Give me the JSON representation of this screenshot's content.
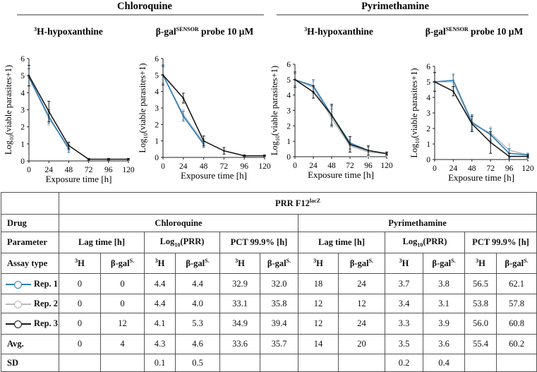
{
  "colors": {
    "rep1": "#2f7fb8",
    "rep2": "#b8b8b8",
    "rep3": "#1a1a1a"
  },
  "groups": [
    "Chloroquine",
    "Pyrimethamine"
  ],
  "chart_data": [
    {
      "type": "line",
      "group": "Chloroquine",
      "title_main": "3H-hypoxanthine",
      "xlabel": "Exposure time [h]",
      "ylabel": "Log10(viable parasites+1)",
      "x": [
        0,
        24,
        48,
        72,
        96,
        120
      ],
      "xticks": [
        "0",
        "24",
        "48",
        "72",
        "96",
        "120"
      ],
      "yticks": [
        "0",
        "1",
        "2",
        "3",
        "4",
        "5",
        "6"
      ],
      "ylim": [
        0,
        6
      ],
      "series": [
        {
          "name": "Rep. 1",
          "x": [
            0,
            24,
            48
          ],
          "values": [
            4.9,
            2.6,
            0.7
          ],
          "err": [
            0.5,
            0.4,
            0.2
          ]
        },
        {
          "name": "Rep. 2",
          "x": [
            0,
            24,
            48
          ],
          "values": [
            4.9,
            2.5,
            0.8
          ],
          "err": [
            0.5,
            0.4,
            0.2
          ]
        },
        {
          "name": "Rep. 3",
          "x": [
            0,
            24,
            48,
            72,
            96,
            120
          ],
          "values": [
            5.0,
            2.9,
            0.9,
            0.1,
            0.1,
            0.1
          ],
          "err": [
            0.6,
            0.6,
            0.2,
            0.05,
            0.05,
            0.05
          ]
        }
      ]
    },
    {
      "type": "line",
      "group": "Chloroquine",
      "title_main": "β-gal",
      "title_sup": "SENSOR",
      "title_tail": " probe  10 μM",
      "xlabel": "Exposure time [h]",
      "ylabel": "Log10(viable parasites+1)",
      "x": [
        0,
        24,
        48,
        72,
        96,
        120
      ],
      "xticks": [
        "0",
        "24",
        "48",
        "72",
        "96",
        "120"
      ],
      "yticks": [
        "0",
        "1",
        "2",
        "3",
        "4",
        "5",
        "6"
      ],
      "ylim": [
        0,
        6
      ],
      "series": [
        {
          "name": "Rep. 1",
          "x": [
            0,
            24,
            48
          ],
          "values": [
            5.0,
            2.5,
            0.8
          ],
          "err": [
            0.5,
            0.3,
            0.2
          ]
        },
        {
          "name": "Rep. 2",
          "x": [
            0,
            24,
            48
          ],
          "values": [
            5.0,
            2.6,
            0.9
          ],
          "err": [
            0.5,
            0.3,
            0.2
          ]
        },
        {
          "name": "Rep. 3",
          "x": [
            0,
            24,
            48,
            72,
            96,
            120
          ],
          "values": [
            5.0,
            3.6,
            1.0,
            0.4,
            0.1,
            0.1
          ],
          "err": [
            0.6,
            0.3,
            0.3,
            0.2,
            0.05,
            0.05
          ]
        }
      ]
    },
    {
      "type": "line",
      "group": "Pyrimethamine",
      "title_main": "3H-hypoxanthine",
      "xlabel": "Exposure time [h]",
      "ylabel": "Log10(viable parasites+1)",
      "x": [
        0,
        24,
        48,
        72,
        96,
        120
      ],
      "xticks": [
        "0",
        "24",
        "48",
        "72",
        "96",
        "120"
      ],
      "yticks": [
        "0",
        "1",
        "2",
        "3",
        "4",
        "5",
        "6"
      ],
      "ylim": [
        0,
        6
      ],
      "series": [
        {
          "name": "Rep. 1",
          "x": [
            0,
            24,
            48,
            72,
            96,
            120
          ],
          "values": [
            5.0,
            4.6,
            2.7,
            0.9,
            0.4,
            0.2
          ],
          "err": [
            0.4,
            0.4,
            0.6,
            0.4,
            0.3,
            0.1
          ]
        },
        {
          "name": "Rep. 2",
          "x": [
            0,
            24,
            48,
            72,
            96,
            120
          ],
          "values": [
            5.0,
            4.5,
            2.5,
            0.7,
            0.3,
            0.2
          ],
          "err": [
            0.4,
            0.4,
            0.6,
            0.4,
            0.3,
            0.1
          ]
        },
        {
          "name": "Rep. 3",
          "x": [
            0,
            24,
            48,
            72,
            96,
            120
          ],
          "values": [
            5.0,
            4.2,
            2.7,
            0.8,
            0.4,
            0.2
          ],
          "err": [
            0.5,
            0.4,
            0.7,
            0.5,
            0.3,
            0.1
          ]
        }
      ]
    },
    {
      "type": "line",
      "group": "Pyrimethamine",
      "title_main": "β-gal",
      "title_sup": "SENSOR",
      "title_tail": " probe  10 μM",
      "xlabel": "Exposure time [h]",
      "ylabel": "Log10(viable parasites+1)",
      "x": [
        0,
        24,
        48,
        72,
        96,
        120
      ],
      "xticks": [
        "0",
        "24",
        "48",
        "72",
        "96",
        "120"
      ],
      "yticks": [
        "0",
        "1",
        "2",
        "3",
        "4",
        "5",
        "6"
      ],
      "ylim": [
        0,
        6
      ],
      "series": [
        {
          "name": "Rep. 1",
          "x": [
            0,
            24,
            48,
            72,
            96,
            120
          ],
          "values": [
            5.0,
            5.1,
            2.4,
            1.6,
            0.4,
            0.3
          ],
          "err": [
            0.6,
            0.4,
            0.5,
            0.4,
            0.3,
            0.1
          ]
        },
        {
          "name": "Rep. 2",
          "x": [
            0,
            24,
            48,
            72,
            96,
            120
          ],
          "values": [
            5.0,
            5.0,
            2.3,
            1.7,
            0.6,
            0.3
          ],
          "err": [
            0.6,
            0.4,
            0.5,
            0.4,
            0.4,
            0.1
          ]
        },
        {
          "name": "Rep. 3",
          "x": [
            0,
            24,
            48,
            72,
            96,
            120
          ],
          "values": [
            5.0,
            4.4,
            2.3,
            1.1,
            0.2,
            0.2
          ],
          "err": [
            0.6,
            0.3,
            0.5,
            0.7,
            0.2,
            0.1
          ]
        }
      ]
    }
  ],
  "table": {
    "title_main": "PRR F12",
    "title_sup": "lacZ",
    "drug_label": "Drug",
    "drugs": [
      "Chloroquine",
      "Pyrimethamine"
    ],
    "parameter_label": "Parameter",
    "lag_label": "Lag time [h]",
    "log_main": "Log",
    "log_sub": "10",
    "log_tail": "(PRR)",
    "pct_label": "PCT 99.9% [h]",
    "assay_label": "Assay type",
    "h_sup": "3",
    "h_main": "H",
    "bg_main": "β-gal",
    "bg_sup": "S.",
    "rows": [
      {
        "label": "Rep. 1",
        "values": [
          "0",
          "0",
          "4.4",
          "4.4",
          "32.9",
          "32.0",
          "18",
          "24",
          "3.7",
          "3.8",
          "56.5",
          "62.1"
        ]
      },
      {
        "label": "Rep. 2",
        "values": [
          "0",
          "0",
          "4.4",
          "4.0",
          "33.1",
          "35.8",
          "12",
          "12",
          "3.4",
          "3.1",
          "53.8",
          "57.8"
        ]
      },
      {
        "label": "Rep. 3",
        "values": [
          "0",
          "12",
          "4.1",
          "5.3",
          "34.9",
          "39.4",
          "12",
          "24",
          "3.3",
          "3.9",
          "56.0",
          "60.8"
        ]
      },
      {
        "label": "Avg.",
        "values": [
          "0",
          "4",
          "4.3",
          "4.6",
          "33.6",
          "35.7",
          "14",
          "20",
          "3.5",
          "3.6",
          "55.4",
          "60.2"
        ]
      },
      {
        "label": "SD",
        "values": [
          "",
          "",
          "0.1",
          "0.5",
          "",
          "",
          "",
          "",
          "0.2",
          "0.4",
          "",
          ""
        ]
      }
    ]
  }
}
